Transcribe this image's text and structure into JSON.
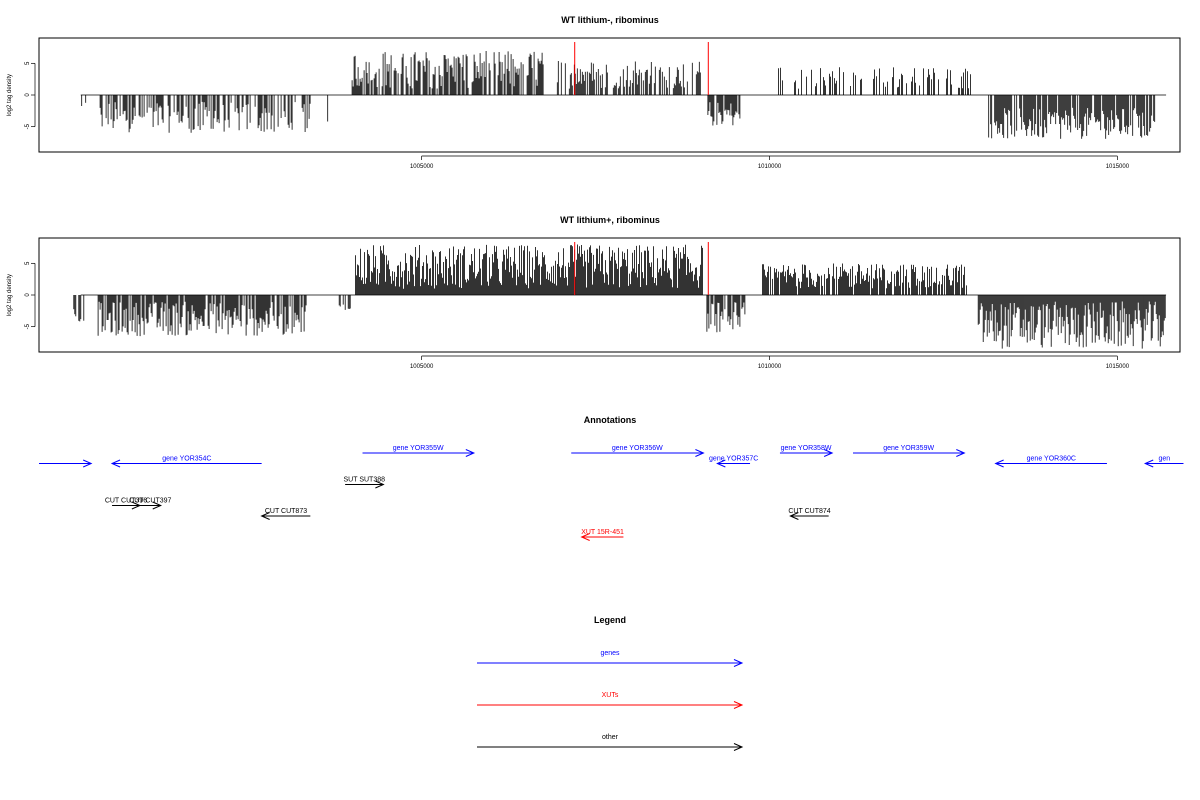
{
  "chart_data": [
    {
      "type": "bar",
      "title": "WT lithium-, ribominus",
      "ylabel": "log2 tag density",
      "x_ticks": [
        1005000,
        1010000,
        1015000
      ],
      "x_tick_labels": [
        "1005000",
        "1010000",
        "1015000"
      ],
      "xlim": [
        999500,
        1015900
      ],
      "y_ticks": [
        -5,
        0,
        5
      ],
      "ylim": [
        -9,
        9
      ],
      "markers": [
        1007200,
        1009120
      ],
      "marker_color": "#ff0000",
      "bar_color": "#000000",
      "segments": [
        {
          "x": [
            1000100,
            1000200
          ],
          "y": [
            -3,
            -1
          ],
          "density": 0.5
        },
        {
          "x": [
            1000350,
            1003400
          ],
          "y": [
            -6,
            -1
          ],
          "density": 0.6
        },
        {
          "x": [
            1003650,
            1003700
          ],
          "y": [
            -4.5,
            -4
          ],
          "density": 0.5
        },
        {
          "x": [
            1004000,
            1006750
          ],
          "y": [
            1,
            7
          ],
          "density": 0.75
        },
        {
          "x": [
            1006950,
            1009050
          ],
          "y": [
            1,
            5.5
          ],
          "density": 0.6
        },
        {
          "x": [
            1009100,
            1009600
          ],
          "y": [
            -5,
            -1
          ],
          "density": 0.85
        },
        {
          "x": [
            1010000,
            1012900
          ],
          "y": [
            1,
            4.5
          ],
          "density": 0.3
        },
        {
          "x": [
            1013150,
            1015550
          ],
          "y": [
            -7,
            -2
          ],
          "density": 0.85
        }
      ]
    },
    {
      "type": "bar",
      "title": "WT lithium+, ribominus",
      "ylabel": "log2 tag density",
      "x_ticks": [
        1005000,
        1010000,
        1015000
      ],
      "x_tick_labels": [
        "1005000",
        "1010000",
        "1015000"
      ],
      "xlim": [
        999500,
        1015900
      ],
      "y_ticks": [
        -5,
        0,
        5
      ],
      "ylim": [
        -9,
        9
      ],
      "markers": [
        1007200,
        1009120
      ],
      "marker_color": "#ff0000",
      "bar_color": "#000000",
      "segments": [
        {
          "x": [
            1000000,
            1000200
          ],
          "y": [
            -4.5,
            -2
          ],
          "density": 0.6
        },
        {
          "x": [
            1000350,
            1003350
          ],
          "y": [
            -6.5,
            -1
          ],
          "density": 0.85
        },
        {
          "x": [
            1003700,
            1003750
          ],
          "y": [
            -2,
            -1
          ],
          "density": 0.3
        },
        {
          "x": [
            1003800,
            1004000
          ],
          "y": [
            -4,
            -1
          ],
          "density": 0.5
        },
        {
          "x": [
            1004050,
            1009050
          ],
          "y": [
            1,
            8
          ],
          "density": 1.0
        },
        {
          "x": [
            1009100,
            1009650
          ],
          "y": [
            -6,
            -1
          ],
          "density": 0.9
        },
        {
          "x": [
            1009900,
            1012850
          ],
          "y": [
            1,
            5
          ],
          "density": 0.8
        },
        {
          "x": [
            1013000,
            1015700
          ],
          "y": [
            -8.5,
            -1
          ],
          "density": 1.0
        }
      ]
    }
  ],
  "annotations": {
    "title": "Annotations",
    "features": [
      {
        "label": "",
        "type": "gene",
        "start": 999500,
        "end": 1000250,
        "strand": "+",
        "row": 1
      },
      {
        "label": "gene YOR354C",
        "type": "gene",
        "start": 1000550,
        "end": 1002700,
        "strand": "-",
        "row": 1
      },
      {
        "label": "gene YOR355W",
        "type": "gene",
        "start": 1004150,
        "end": 1005750,
        "strand": "+",
        "row": 0
      },
      {
        "label": "gene YOR356W",
        "type": "gene",
        "start": 1007150,
        "end": 1009050,
        "strand": "+",
        "row": 0
      },
      {
        "label": "gene YOR357C",
        "type": "gene",
        "start": 1009250,
        "end": 1009720,
        "strand": "-",
        "row": 1
      },
      {
        "label": "gene YOR358W",
        "type": "gene",
        "start": 1010150,
        "end": 1010900,
        "strand": "+",
        "row": 0
      },
      {
        "label": "gene YOR359W",
        "type": "gene",
        "start": 1011200,
        "end": 1012800,
        "strand": "+",
        "row": 0
      },
      {
        "label": "gene YOR360C",
        "type": "gene",
        "start": 1013250,
        "end": 1014850,
        "strand": "-",
        "row": 1
      },
      {
        "label": "gen",
        "type": "gene",
        "start": 1015400,
        "end": 1015950,
        "strand": "-",
        "row": 1
      },
      {
        "label": "SUT SUT388",
        "type": "other",
        "start": 1003900,
        "end": 1004450,
        "strand": "+",
        "row": 3
      },
      {
        "label": "CUT CUT396",
        "type": "other",
        "start": 1000550,
        "end": 1000950,
        "strand": "+",
        "row": 5
      },
      {
        "label": "CUT CUT397",
        "type": "other",
        "start": 1000950,
        "end": 1001250,
        "strand": "+",
        "row": 5
      },
      {
        "label": "CUT CUT873",
        "type": "other",
        "start": 1002700,
        "end": 1003400,
        "strand": "-",
        "row": 6
      },
      {
        "label": "CUT CUT874",
        "type": "other",
        "start": 1010300,
        "end": 1010850,
        "strand": "-",
        "row": 6
      },
      {
        "label": "XUT 15R-451",
        "type": "xut",
        "start": 1007300,
        "end": 1007900,
        "strand": "-",
        "row": 8
      }
    ]
  },
  "legend": {
    "title": "Legend",
    "items": [
      {
        "label": "genes",
        "color": "#0000ff"
      },
      {
        "label": "XUTs",
        "color": "#ff0000"
      },
      {
        "label": "other",
        "color": "#000000"
      }
    ]
  },
  "colors": {
    "gene": "#0000ff",
    "xut": "#ff0000",
    "other": "#000000"
  }
}
